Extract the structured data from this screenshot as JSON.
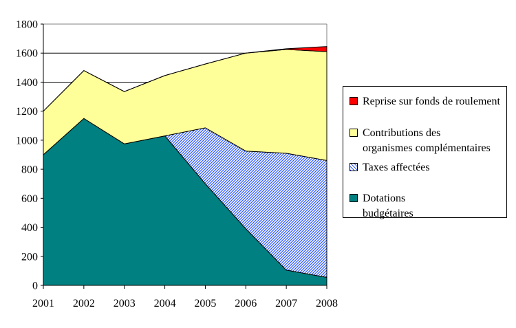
{
  "chart_data": {
    "type": "area",
    "stacked": true,
    "title": "",
    "xlabel": "",
    "ylabel": "",
    "x": [
      "2001",
      "2002",
      "2003",
      "2004",
      "2005",
      "2006",
      "2007",
      "2008"
    ],
    "series": [
      {
        "name": "Dotations budgétaires",
        "values": [
          900,
          1150,
          975,
          1030,
          700,
          390,
          105,
          55
        ],
        "fill": "#008080",
        "pattern": "solid"
      },
      {
        "name": "Taxes affectées",
        "values": [
          0,
          0,
          0,
          0,
          385,
          535,
          805,
          805
        ],
        "fill": "#2E58FF",
        "pattern": "diagonal-hatch"
      },
      {
        "name": "Contributions des organismes complémentaires",
        "values": [
          300,
          330,
          360,
          415,
          440,
          675,
          715,
          750
        ],
        "fill": "#FFFF99",
        "pattern": "solid"
      },
      {
        "name": "Reprise sur fonds de roulement",
        "values": [
          0,
          0,
          0,
          0,
          0,
          0,
          5,
          35
        ],
        "fill": "#FF0000",
        "pattern": "solid"
      }
    ],
    "ylim": [
      0,
      1800
    ],
    "ytick_step": 200,
    "y_tick_labels": [
      "0",
      "200",
      "400",
      "600",
      "800",
      "1000",
      "1200",
      "1400",
      "1600",
      "1800"
    ],
    "grid": "horizontal",
    "gridline_color": "#000000",
    "plot_border_color": "#808080",
    "axis_color": "#000000",
    "outline_color": "#000000",
    "legend_position": "right"
  },
  "legend": {
    "items": [
      {
        "line1": "Reprise sur fonds de roulement",
        "line2": "",
        "series_index": 3
      },
      {
        "line1": "Contributions des",
        "line2": "organismes complémentaires",
        "series_index": 2
      },
      {
        "line1": "Taxes affectées",
        "line2": "",
        "series_index": 1
      },
      {
        "line1": "Dotations",
        "line2": "budgétaires",
        "series_index": 0
      }
    ]
  }
}
